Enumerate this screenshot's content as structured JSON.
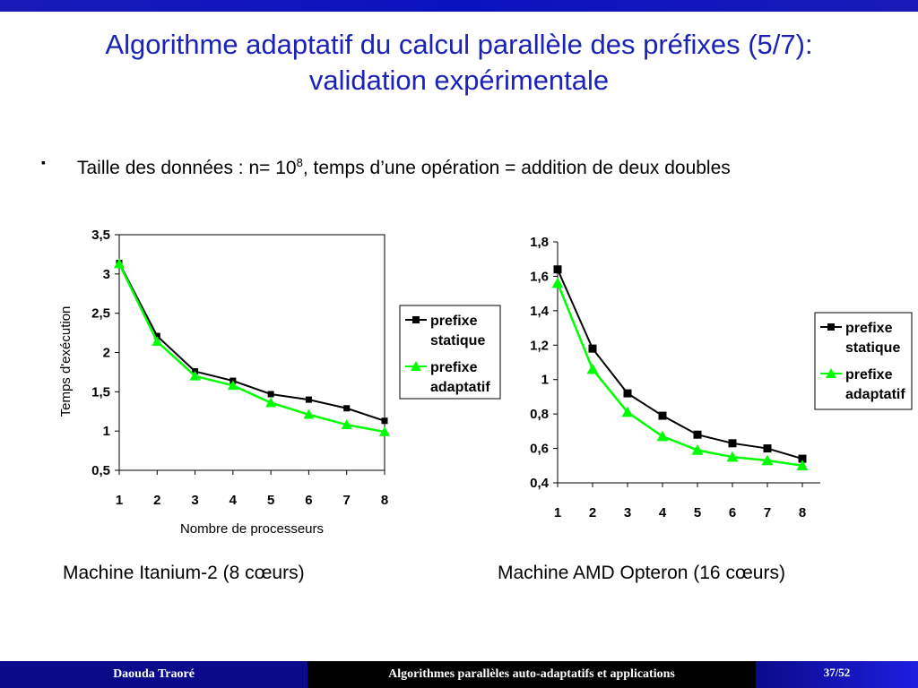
{
  "slide": {
    "title_line1": "Algorithme adaptatif du calcul parallèle des préfixes (5/7):",
    "title_line2": "validation expérimentale",
    "bullet_glyph": "▪",
    "bullet_part1": "Taille des données : n= 10",
    "bullet_sup": "8",
    "bullet_part2": ",  temps d’une opération = addition de deux doubles",
    "caption_left": "Machine Itanium-2 (8 cœurs)",
    "caption_right": "Machine AMD Opteron (16 cœurs)",
    "accent_color": "#1a22b8"
  },
  "footer": {
    "author": "Daouda Traoré",
    "course": "Algorithmes parallèles auto-adaptatifs et applications",
    "page": "37/52"
  },
  "chart_data": [
    {
      "type": "line",
      "title": "",
      "xlabel": "Nombre de processeurs",
      "ylabel": "Temps d'exécution",
      "categories": [
        "1",
        "2",
        "3",
        "4",
        "5",
        "6",
        "7",
        "8"
      ],
      "ylim": [
        0.5,
        3.5
      ],
      "yticks": [
        0.5,
        1,
        1.5,
        2,
        2.5,
        3,
        3.5
      ],
      "ytick_labels": [
        "0,5",
        "1",
        "1,5",
        "2",
        "2,5",
        "3",
        "3,5"
      ],
      "legend_position": "right",
      "series": [
        {
          "name": "prefixe statique",
          "legend_lines": [
            "prefixe",
            "statique"
          ],
          "color": "#000000",
          "marker": "square",
          "values": [
            3.14,
            2.21,
            1.76,
            1.64,
            1.47,
            1.4,
            1.29,
            1.13
          ]
        },
        {
          "name": "prefixe adaptatif",
          "legend_lines": [
            "prefixe",
            "adaptatif"
          ],
          "color": "#00ff00",
          "marker": "triangle",
          "values": [
            3.13,
            2.14,
            1.7,
            1.58,
            1.36,
            1.21,
            1.08,
            0.99
          ]
        }
      ]
    },
    {
      "type": "line",
      "title": "",
      "xlabel": "",
      "ylabel": "",
      "categories": [
        "1",
        "2",
        "3",
        "4",
        "5",
        "6",
        "7",
        "8"
      ],
      "ylim": [
        0.4,
        1.8
      ],
      "yticks": [
        0.4,
        0.6,
        0.8,
        1.0,
        1.2,
        1.4,
        1.6,
        1.8
      ],
      "ytick_labels": [
        "0,4",
        "0,6",
        "0,8",
        "1",
        "1,2",
        "1,4",
        "1,6",
        "1,8"
      ],
      "legend_position": "right",
      "series": [
        {
          "name": "prefixe statique",
          "legend_lines": [
            "prefixe",
            "statique"
          ],
          "color": "#000000",
          "marker": "square",
          "values": [
            1.64,
            1.18,
            0.92,
            0.79,
            0.68,
            0.63,
            0.6,
            0.54
          ]
        },
        {
          "name": "prefixe adaptatif",
          "legend_lines": [
            "prefixe",
            "adaptatif"
          ],
          "color": "#00ff00",
          "marker": "triangle",
          "values": [
            1.56,
            1.06,
            0.81,
            0.67,
            0.59,
            0.55,
            0.53,
            0.5
          ]
        }
      ]
    }
  ]
}
